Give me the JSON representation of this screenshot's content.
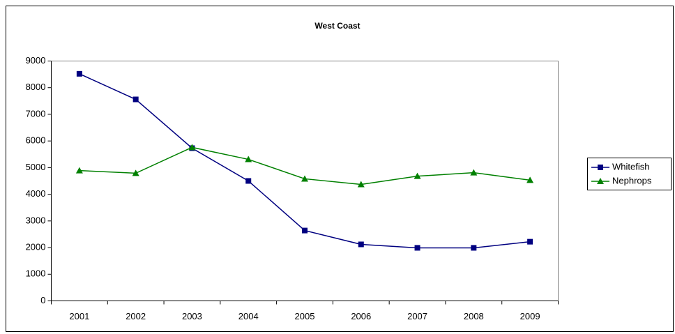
{
  "chart_data": {
    "type": "line",
    "title": "West Coast",
    "categories": [
      "2001",
      "2002",
      "2003",
      "2004",
      "2005",
      "2006",
      "2007",
      "2008",
      "2009"
    ],
    "series": [
      {
        "name": "Whitefish",
        "color": "#000080",
        "marker": "square",
        "values": [
          8520,
          7560,
          5730,
          4500,
          2640,
          2120,
          1990,
          1990,
          2220
        ]
      },
      {
        "name": "Nephrops",
        "color": "#008000",
        "marker": "triangle",
        "values": [
          4890,
          4790,
          5760,
          5310,
          4580,
          4370,
          4680,
          4810,
          4530
        ]
      }
    ],
    "ylim": [
      0,
      9000
    ],
    "yticks": [
      0,
      1000,
      2000,
      3000,
      4000,
      5000,
      6000,
      7000,
      8000,
      9000
    ],
    "grid": false,
    "legend": "right"
  }
}
